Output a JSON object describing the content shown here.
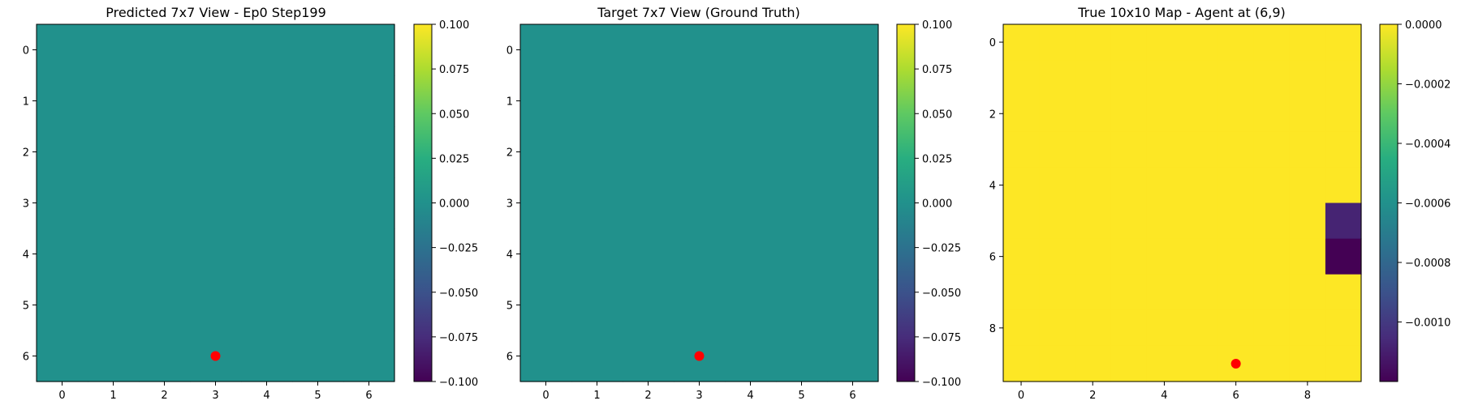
{
  "chart_data": [
    {
      "type": "heatmap",
      "title": "Predicted 7x7 View - Ep0 Step199",
      "rows": 7,
      "cols": 7,
      "values": [
        [
          0,
          0,
          0,
          0,
          0,
          0,
          0
        ],
        [
          0,
          0,
          0,
          0,
          0,
          0,
          0
        ],
        [
          0,
          0,
          0,
          0,
          0,
          0,
          0
        ],
        [
          0,
          0,
          0,
          0,
          0,
          0,
          0
        ],
        [
          0,
          0,
          0,
          0,
          0,
          0,
          0
        ],
        [
          0,
          0,
          0,
          0,
          0,
          0,
          0
        ],
        [
          0,
          0,
          0,
          0,
          0,
          0,
          0
        ]
      ],
      "xticks": [
        0,
        1,
        2,
        3,
        4,
        5,
        6
      ],
      "yticks": [
        0,
        1,
        2,
        3,
        4,
        5,
        6
      ],
      "marker": {
        "x": 3,
        "y": 6,
        "color": "#ff0000"
      },
      "colorbar": {
        "min": -0.1,
        "max": 0.1,
        "colormap": "viridis",
        "ticks": [
          0.1,
          0.075,
          0.05,
          0.025,
          0,
          -0.025,
          -0.05,
          -0.075,
          -0.1
        ],
        "tick_labels": [
          "0.100",
          "0.075",
          "0.050",
          "0.025",
          "0.000",
          "−0.025",
          "−0.050",
          "−0.075",
          "−0.100"
        ]
      }
    },
    {
      "type": "heatmap",
      "title": "Target 7x7 View (Ground Truth)",
      "rows": 7,
      "cols": 7,
      "values": [
        [
          0,
          0,
          0,
          0,
          0,
          0,
          0
        ],
        [
          0,
          0,
          0,
          0,
          0,
          0,
          0
        ],
        [
          0,
          0,
          0,
          0,
          0,
          0,
          0
        ],
        [
          0,
          0,
          0,
          0,
          0,
          0,
          0
        ],
        [
          0,
          0,
          0,
          0,
          0,
          0,
          0
        ],
        [
          0,
          0,
          0,
          0,
          0,
          0,
          0
        ],
        [
          0,
          0,
          0,
          0,
          0,
          0,
          0
        ]
      ],
      "xticks": [
        0,
        1,
        2,
        3,
        4,
        5,
        6
      ],
      "yticks": [
        0,
        1,
        2,
        3,
        4,
        5,
        6
      ],
      "marker": {
        "x": 3,
        "y": 6,
        "color": "#ff0000"
      },
      "colorbar": {
        "min": -0.1,
        "max": 0.1,
        "colormap": "viridis",
        "ticks": [
          0.1,
          0.075,
          0.05,
          0.025,
          0,
          -0.025,
          -0.05,
          -0.075,
          -0.1
        ],
        "tick_labels": [
          "0.100",
          "0.075",
          "0.050",
          "0.025",
          "0.000",
          "−0.025",
          "−0.050",
          "−0.075",
          "−0.100"
        ]
      }
    },
    {
      "type": "heatmap",
      "title": "True 10x10 Map - Agent at (6,9)",
      "rows": 10,
      "cols": 10,
      "values": [
        [
          0,
          0,
          0,
          0,
          0,
          0,
          0,
          0,
          0,
          0
        ],
        [
          0,
          0,
          0,
          0,
          0,
          0,
          0,
          0,
          0,
          0
        ],
        [
          0,
          0,
          0,
          0,
          0,
          0,
          0,
          0,
          0,
          0
        ],
        [
          0,
          0,
          0,
          0,
          0,
          0,
          0,
          0,
          0,
          0
        ],
        [
          0,
          0,
          0,
          0,
          0,
          0,
          0,
          0,
          0,
          0
        ],
        [
          0,
          0,
          0,
          0,
          0,
          0,
          0,
          0,
          0,
          -0.00108
        ],
        [
          0,
          0,
          0,
          0,
          0,
          0,
          0,
          0,
          0,
          -0.0012
        ],
        [
          0,
          0,
          0,
          0,
          0,
          0,
          0,
          0,
          0,
          0
        ],
        [
          0,
          0,
          0,
          0,
          0,
          0,
          0,
          0,
          0,
          0
        ],
        [
          0,
          0,
          0,
          0,
          0,
          0,
          0,
          0,
          0,
          0
        ]
      ],
      "xticks": [
        0,
        2,
        4,
        6,
        8
      ],
      "yticks": [
        0,
        2,
        4,
        6,
        8
      ],
      "marker": {
        "x": 6,
        "y": 9,
        "color": "#ff0000"
      },
      "colorbar": {
        "min": -0.0012,
        "max": 0,
        "colormap": "viridis",
        "ticks": [
          0,
          -0.0002,
          -0.0004,
          -0.0006,
          -0.0008,
          -0.001
        ],
        "tick_labels": [
          "0.0000",
          "−0.0002",
          "−0.0004",
          "−0.0006",
          "−0.0008",
          "−0.0010"
        ]
      }
    }
  ]
}
